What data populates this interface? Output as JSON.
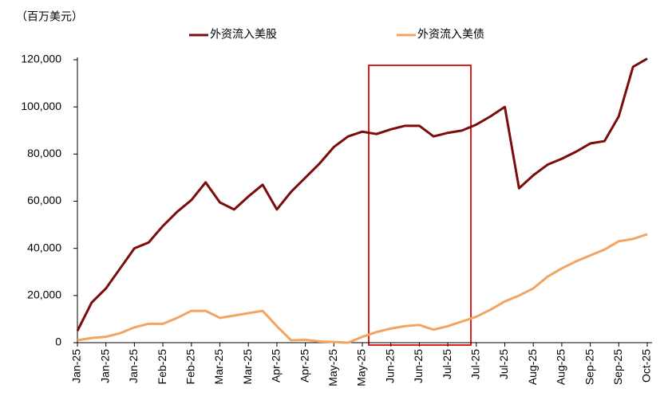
{
  "chart_data": {
    "type": "line",
    "y_axis_label": "（百万美元）",
    "categories": [
      "Jan-25",
      null,
      "Jan-25",
      null,
      "Jan-25",
      null,
      "Feb-25",
      null,
      "Feb-25",
      null,
      "Mar-25",
      null,
      "Mar-25",
      null,
      "Apr-25",
      null,
      "Apr-25",
      null,
      "May-25",
      null,
      "May-25",
      null,
      "Jun-25",
      null,
      "Jun-25",
      null,
      "Jul-25",
      null,
      "Jul-25",
      null,
      "Jul-25",
      null,
      "Aug-25",
      null,
      "Aug-25",
      null,
      "Sep-25",
      null,
      "Sep-25",
      null,
      "Oct-25"
    ],
    "series": [
      {
        "name": "外资流入美股",
        "color": "#7b0c0c",
        "values": [
          5000,
          17000,
          23000,
          31500,
          40000,
          42500,
          49500,
          55500,
          60500,
          68000,
          59500,
          56500,
          62000,
          67000,
          56500,
          64000,
          70000,
          76000,
          83000,
          87500,
          89500,
          88500,
          90500,
          92000,
          92000,
          87500,
          89000,
          90000,
          92500,
          96000,
          100000,
          65500,
          71000,
          75500,
          78000,
          81000,
          84500,
          85500,
          96000,
          117000,
          120500
        ]
      },
      {
        "name": "外资流入美债",
        "color": "#f4a460",
        "values": [
          1000,
          2000,
          2500,
          4000,
          6500,
          8000,
          8000,
          10500,
          13500,
          13500,
          10500,
          11500,
          12500,
          13500,
          7000,
          1000,
          1200,
          500,
          300,
          0,
          2500,
          4500,
          6000,
          7000,
          7500,
          5500,
          7000,
          9000,
          11000,
          14000,
          17500,
          20000,
          23000,
          28000,
          31500,
          34500,
          37000,
          39500,
          43000,
          44000,
          46000
        ]
      }
    ],
    "ylim": [
      0,
      120000
    ],
    "yticks": [
      0,
      {
        "value": 20000,
        "label": "20,000"
      },
      {
        "value": 40000,
        "label": "40,000"
      },
      {
        "value": 60000,
        "label": "60,000"
      },
      {
        "value": 80000,
        "label": "80,000"
      },
      {
        "value": 100000,
        "label": "100,000"
      },
      {
        "value": 120000,
        "label": "120,000"
      }
    ],
    "legend": "top"
  }
}
